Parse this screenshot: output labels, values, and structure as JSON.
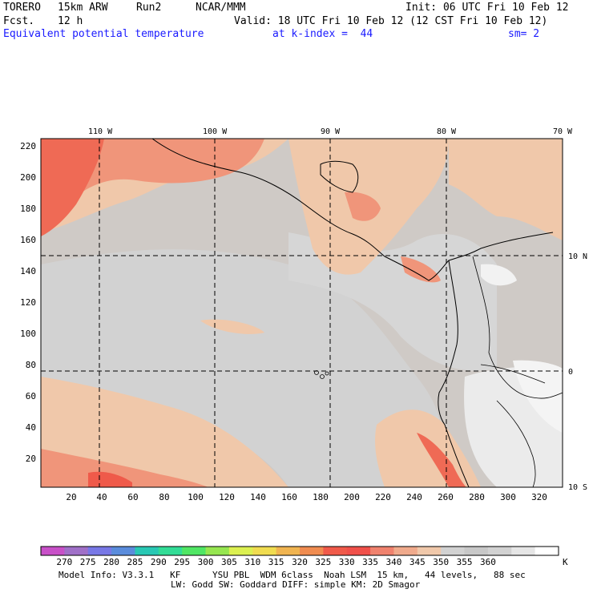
{
  "header": {
    "model": "TORERO",
    "resolution": "15km ARW",
    "run": "Run2",
    "org": "NCAR/MMM",
    "init": "Init: 06 UTC Fri 10 Feb 12",
    "fcst_label": "Fcst.",
    "fcst_value": "12 h",
    "valid": "Valid: 18 UTC Fri 10 Feb 12 (12 CST Fri 10 Feb 12)",
    "field": "Equivalent potential temperature",
    "level": "at k-index =  44",
    "smooth": "sm= 2"
  },
  "map": {
    "lon_labels": [
      "110 W",
      "100 W",
      "90 W",
      "80 W",
      "70 W"
    ],
    "lat_labels": [
      "10 N",
      "0",
      "10 S"
    ],
    "y_ticks": [
      "220",
      "200",
      "180",
      "160",
      "140",
      "120",
      "100",
      "80",
      "60",
      "40",
      "20"
    ],
    "x_ticks": [
      "20",
      "40",
      "60",
      "80",
      "100",
      "120",
      "140",
      "160",
      "180",
      "200",
      "220",
      "240",
      "260",
      "280",
      "300",
      "320"
    ]
  },
  "colorbar": {
    "colors": [
      "#c850c8",
      "#a070c8",
      "#7878e6",
      "#5a8cdc",
      "#28c8b4",
      "#32dc96",
      "#50e664",
      "#96e650",
      "#dcf050",
      "#f0dc50",
      "#f0b450",
      "#f08c50",
      "#f05a4a",
      "#f0504a",
      "#f0826e",
      "#f0aa8c",
      "#f0c8aa",
      "#d2d2d2",
      "#c8c8c8",
      "#d2d2d2",
      "#e6e6e6",
      "#ffffff"
    ],
    "labels": [
      "270",
      "275",
      "280",
      "285",
      "290",
      "295",
      "300",
      "305",
      "310",
      "315",
      "320",
      "325",
      "330",
      "335",
      "340",
      "345",
      "350",
      "355",
      "360"
    ],
    "unit": "K"
  },
  "footer": {
    "line1": "Model Info: V3.3.1   KF      YSU PBL  WDM 6class  Noah LSM  15 km,   44 levels,   88 sec",
    "line2": "LW: Godd SW: Goddard DIFF: simple KM: 2D Smagor"
  }
}
